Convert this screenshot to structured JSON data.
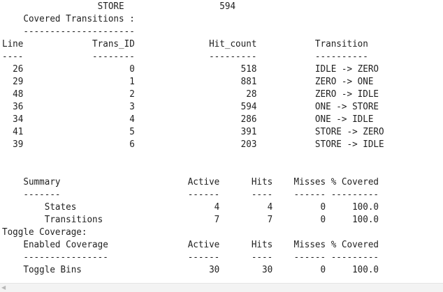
{
  "report": {
    "lines": [
      "                  STORE                  594",
      "    Covered Transitions :",
      "    ---------------------",
      "Line             Trans_ID              Hit_count           Transition",
      "----             --------              ---------           ----------",
      "  26                    0                    518           IDLE -> ZERO",
      "  29                    1                    881           ZERO -> ONE",
      "  48                    2                     28           ZERO -> IDLE",
      "  36                    3                    594           ONE -> STORE",
      "  34                    4                    286           ONE -> IDLE",
      "  41                    5                    391           STORE -> ZERO",
      "  39                    6                    203           STORE -> IDLE",
      "",
      "",
      "    Summary                        Active      Hits    Misses % Covered",
      "    -------                        ------      ----    ------ ---------",
      "        States                          4         4         0     100.0",
      "        Transitions                     7         7         0     100.0",
      "Toggle Coverage:",
      "    Enabled Coverage               Active      Hits    Misses % Covered",
      "    ----------------               ------      ----    ------ ---------",
      "    Toggle Bins                        30        30         0     100.0"
    ]
  },
  "scrollbar": {
    "left_arrow_icon": "chevron-left-icon"
  }
}
